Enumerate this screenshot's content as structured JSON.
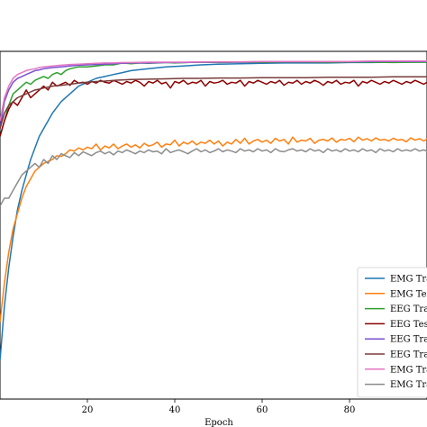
{
  "chart_data": {
    "type": "line",
    "xlabel": "Epoch",
    "ylabel": "",
    "title": "",
    "xlim": [
      0,
      100
    ],
    "ylim": [
      0.1,
      1.0
    ],
    "x_ticks": [
      20,
      40,
      60,
      80
    ],
    "grid": false,
    "legend_position": "bottom-right",
    "series": [
      {
        "name": "EMG Trai",
        "color": "#1f77b4",
        "x": [
          0,
          1,
          2,
          3,
          4,
          5,
          6,
          7,
          8,
          9,
          10,
          12,
          14,
          16,
          18,
          20,
          22,
          24,
          26,
          28,
          30,
          34,
          38,
          42,
          46,
          50,
          55,
          60,
          65,
          70,
          75,
          80,
          85,
          90,
          95,
          100
        ],
        "y": [
          0.2,
          0.34,
          0.44,
          0.52,
          0.59,
          0.64,
          0.68,
          0.72,
          0.75,
          0.78,
          0.8,
          0.84,
          0.87,
          0.89,
          0.91,
          0.92,
          0.93,
          0.935,
          0.94,
          0.945,
          0.95,
          0.955,
          0.96,
          0.962,
          0.965,
          0.967,
          0.968,
          0.969,
          0.97,
          0.97,
          0.97,
          0.971,
          0.971,
          0.972,
          0.972,
          0.972
        ]
      },
      {
        "name": "EMG Tes",
        "color": "#ff7f0e",
        "x": [
          0,
          1,
          2,
          3,
          4,
          5,
          6,
          7,
          8,
          9,
          10,
          11,
          12,
          13,
          14,
          15,
          16,
          17,
          18,
          19,
          20,
          21,
          22,
          23,
          24,
          25,
          26,
          27,
          28,
          29,
          30,
          31,
          32,
          33,
          34,
          35,
          36,
          37,
          38,
          39,
          40,
          41,
          42,
          43,
          44,
          45,
          46,
          47,
          48,
          49,
          50,
          51,
          52,
          53,
          54,
          55,
          56,
          57,
          58,
          59,
          60,
          61,
          62,
          63,
          64,
          65,
          66,
          67,
          68,
          69,
          70,
          71,
          72,
          73,
          74,
          75,
          76,
          77,
          78,
          79,
          80,
          81,
          82,
          83,
          84,
          85,
          86,
          87,
          88,
          89,
          90,
          91,
          92,
          93,
          94,
          95,
          96,
          97,
          98,
          99,
          100
        ],
        "y": [
          0.3,
          0.4,
          0.48,
          0.54,
          0.58,
          0.62,
          0.65,
          0.67,
          0.69,
          0.7,
          0.71,
          0.715,
          0.72,
          0.73,
          0.728,
          0.735,
          0.745,
          0.742,
          0.75,
          0.745,
          0.752,
          0.748,
          0.76,
          0.745,
          0.755,
          0.75,
          0.76,
          0.748,
          0.755,
          0.76,
          0.752,
          0.758,
          0.75,
          0.762,
          0.755,
          0.758,
          0.765,
          0.752,
          0.76,
          0.758,
          0.77,
          0.755,
          0.765,
          0.76,
          0.768,
          0.758,
          0.765,
          0.762,
          0.77,
          0.76,
          0.768,
          0.755,
          0.765,
          0.76,
          0.772,
          0.762,
          0.775,
          0.76,
          0.768,
          0.772,
          0.765,
          0.77,
          0.762,
          0.775,
          0.768,
          0.772,
          0.76,
          0.778,
          0.765,
          0.77,
          0.768,
          0.775,
          0.762,
          0.77,
          0.772,
          0.768,
          0.776,
          0.765,
          0.772,
          0.77,
          0.775,
          0.766,
          0.778,
          0.77,
          0.774,
          0.768,
          0.776,
          0.77,
          0.772,
          0.768,
          0.775,
          0.77,
          0.772,
          0.766,
          0.776,
          0.77,
          0.774,
          0.768,
          0.775,
          0.77,
          0.772
        ]
      },
      {
        "name": "EEG Trai",
        "color": "#2ca02c",
        "x": [
          0,
          1,
          2,
          3,
          4,
          5,
          6,
          7,
          8,
          9,
          10,
          11,
          12,
          13,
          14,
          15,
          16,
          18,
          20,
          22,
          24,
          26,
          28,
          30,
          32,
          34,
          36,
          38,
          40,
          45,
          50,
          55,
          60,
          65,
          70,
          75,
          80,
          85,
          90,
          95,
          100
        ],
        "y": [
          0.78,
          0.82,
          0.86,
          0.89,
          0.9,
          0.91,
          0.92,
          0.915,
          0.925,
          0.93,
          0.935,
          0.93,
          0.94,
          0.945,
          0.94,
          0.95,
          0.955,
          0.96,
          0.96,
          0.962,
          0.965,
          0.965,
          0.97,
          0.968,
          0.97,
          0.969,
          0.97,
          0.971,
          0.97,
          0.972,
          0.971,
          0.972,
          0.971,
          0.972,
          0.972,
          0.971,
          0.972,
          0.972,
          0.971,
          0.972,
          0.972
        ]
      },
      {
        "name": "EEG Tes",
        "color": "#8c0000",
        "x": [
          0,
          1,
          2,
          3,
          4,
          5,
          6,
          7,
          8,
          9,
          10,
          11,
          12,
          13,
          14,
          15,
          16,
          17,
          18,
          19,
          20,
          21,
          22,
          23,
          24,
          25,
          26,
          27,
          28,
          29,
          30,
          31,
          32,
          33,
          34,
          35,
          36,
          37,
          38,
          39,
          40,
          41,
          42,
          43,
          44,
          45,
          46,
          47,
          48,
          49,
          50,
          51,
          52,
          53,
          54,
          55,
          56,
          57,
          58,
          59,
          60,
          61,
          62,
          63,
          64,
          65,
          66,
          67,
          68,
          69,
          70,
          71,
          72,
          73,
          74,
          75,
          76,
          77,
          78,
          79,
          80,
          81,
          82,
          83,
          84,
          85,
          86,
          87,
          88,
          89,
          90,
          91,
          92,
          93,
          94,
          95,
          96,
          97,
          98,
          99,
          100
        ],
        "y": [
          0.78,
          0.82,
          0.85,
          0.87,
          0.86,
          0.88,
          0.9,
          0.88,
          0.89,
          0.9,
          0.91,
          0.9,
          0.92,
          0.91,
          0.915,
          0.92,
          0.912,
          0.925,
          0.918,
          0.92,
          0.915,
          0.922,
          0.918,
          0.925,
          0.92,
          0.918,
          0.925,
          0.92,
          0.915,
          0.922,
          0.918,
          0.925,
          0.92,
          0.91,
          0.922,
          0.918,
          0.925,
          0.916,
          0.92,
          0.905,
          0.922,
          0.918,
          0.925,
          0.915,
          0.92,
          0.918,
          0.925,
          0.91,
          0.922,
          0.918,
          0.92,
          0.925,
          0.915,
          0.92,
          0.918,
          0.925,
          0.91,
          0.922,
          0.918,
          0.925,
          0.92,
          0.915,
          0.922,
          0.918,
          0.925,
          0.912,
          0.92,
          0.918,
          0.925,
          0.915,
          0.922,
          0.918,
          0.925,
          0.92,
          0.912,
          0.922,
          0.918,
          0.925,
          0.915,
          0.92,
          0.918,
          0.925,
          0.91,
          0.922,
          0.918,
          0.925,
          0.92,
          0.915,
          0.922,
          0.918,
          0.925,
          0.92,
          0.915,
          0.922,
          0.918,
          0.925,
          0.92,
          0.915,
          0.922,
          0.918,
          0.925
        ]
      },
      {
        "name": "EEG Trai",
        "color": "#7b4fd1",
        "x": [
          0,
          1,
          2,
          3,
          4,
          5,
          6,
          7,
          8,
          9,
          10,
          12,
          14,
          16,
          18,
          20,
          22,
          24,
          26,
          28,
          30,
          34,
          38,
          42,
          46,
          50,
          55,
          60,
          65,
          70,
          75,
          80,
          85,
          90,
          95,
          100
        ],
        "y": [
          0.8,
          0.87,
          0.9,
          0.92,
          0.93,
          0.935,
          0.94,
          0.945,
          0.95,
          0.952,
          0.955,
          0.958,
          0.96,
          0.962,
          0.964,
          0.965,
          0.966,
          0.967,
          0.968,
          0.969,
          0.97,
          0.97,
          0.971,
          0.971,
          0.972,
          0.972,
          0.972,
          0.973,
          0.973,
          0.973,
          0.973,
          0.973,
          0.974,
          0.974,
          0.974,
          0.974
        ]
      },
      {
        "name": "EEG Trai",
        "color": "#7a3b3b",
        "x": [
          0,
          1,
          2,
          3,
          4,
          5,
          6,
          7,
          8,
          9,
          10,
          12,
          14,
          16,
          18,
          20,
          22,
          24,
          26,
          28,
          30,
          34,
          38,
          42,
          46,
          50,
          55,
          60,
          65,
          70,
          75,
          80,
          85,
          90,
          95,
          100
        ],
        "y": [
          0.8,
          0.84,
          0.86,
          0.87,
          0.88,
          0.885,
          0.89,
          0.895,
          0.9,
          0.902,
          0.905,
          0.91,
          0.912,
          0.915,
          0.918,
          0.92,
          0.922,
          0.923,
          0.925,
          0.926,
          0.927,
          0.928,
          0.929,
          0.93,
          0.93,
          0.931,
          0.931,
          0.932,
          0.932,
          0.932,
          0.933,
          0.933,
          0.933,
          0.934,
          0.934,
          0.934
        ]
      },
      {
        "name": "EMG Trai",
        "color": "#e377c2",
        "x": [
          0,
          1,
          2,
          3,
          4,
          5,
          6,
          7,
          8,
          9,
          10,
          12,
          14,
          16,
          18,
          20,
          22,
          24,
          26,
          28,
          30,
          34,
          38,
          42,
          46,
          50,
          55,
          60,
          65,
          70,
          75,
          80,
          85,
          90,
          95,
          100
        ],
        "y": [
          0.82,
          0.88,
          0.91,
          0.93,
          0.94,
          0.945,
          0.95,
          0.953,
          0.955,
          0.958,
          0.96,
          0.962,
          0.964,
          0.966,
          0.967,
          0.968,
          0.969,
          0.97,
          0.97,
          0.971,
          0.971,
          0.972,
          0.972,
          0.972,
          0.973,
          0.973,
          0.973,
          0.974,
          0.974,
          0.974,
          0.974,
          0.974,
          0.975,
          0.975,
          0.975,
          0.975
        ]
      },
      {
        "name": "EMG Trai",
        "color": "#8c8c8c",
        "x": [
          0,
          1,
          2,
          3,
          4,
          5,
          6,
          7,
          8,
          9,
          10,
          11,
          12,
          13,
          14,
          15,
          16,
          17,
          18,
          19,
          20,
          21,
          22,
          23,
          24,
          25,
          26,
          27,
          28,
          29,
          30,
          31,
          32,
          33,
          34,
          35,
          36,
          37,
          38,
          39,
          40,
          41,
          42,
          43,
          44,
          45,
          46,
          47,
          48,
          49,
          50,
          51,
          52,
          53,
          54,
          55,
          56,
          57,
          58,
          59,
          60,
          61,
          62,
          63,
          64,
          65,
          66,
          67,
          68,
          69,
          70,
          71,
          72,
          73,
          74,
          75,
          76,
          77,
          78,
          79,
          80,
          81,
          82,
          83,
          84,
          85,
          86,
          87,
          88,
          89,
          90,
          91,
          92,
          93,
          94,
          95,
          96,
          97,
          98,
          99,
          100
        ],
        "y": [
          0.6,
          0.62,
          0.62,
          0.64,
          0.66,
          0.68,
          0.69,
          0.7,
          0.71,
          0.7,
          0.72,
          0.71,
          0.73,
          0.72,
          0.735,
          0.73,
          0.725,
          0.738,
          0.73,
          0.74,
          0.735,
          0.73,
          0.738,
          0.742,
          0.735,
          0.74,
          0.732,
          0.742,
          0.738,
          0.745,
          0.74,
          0.735,
          0.742,
          0.738,
          0.745,
          0.74,
          0.742,
          0.735,
          0.748,
          0.738,
          0.742,
          0.745,
          0.74,
          0.735,
          0.742,
          0.748,
          0.74,
          0.745,
          0.738,
          0.742,
          0.748,
          0.74,
          0.745,
          0.742,
          0.738,
          0.748,
          0.742,
          0.745,
          0.74,
          0.748,
          0.742,
          0.745,
          0.738,
          0.748,
          0.742,
          0.74,
          0.745,
          0.748,
          0.742,
          0.745,
          0.74,
          0.748,
          0.742,
          0.745,
          0.738,
          0.748,
          0.742,
          0.745,
          0.74,
          0.748,
          0.742,
          0.745,
          0.74,
          0.748,
          0.742,
          0.745,
          0.738,
          0.748,
          0.742,
          0.745,
          0.74,
          0.748,
          0.742,
          0.745,
          0.742,
          0.748,
          0.742,
          0.745,
          0.74,
          0.748,
          0.745
        ]
      }
    ]
  }
}
